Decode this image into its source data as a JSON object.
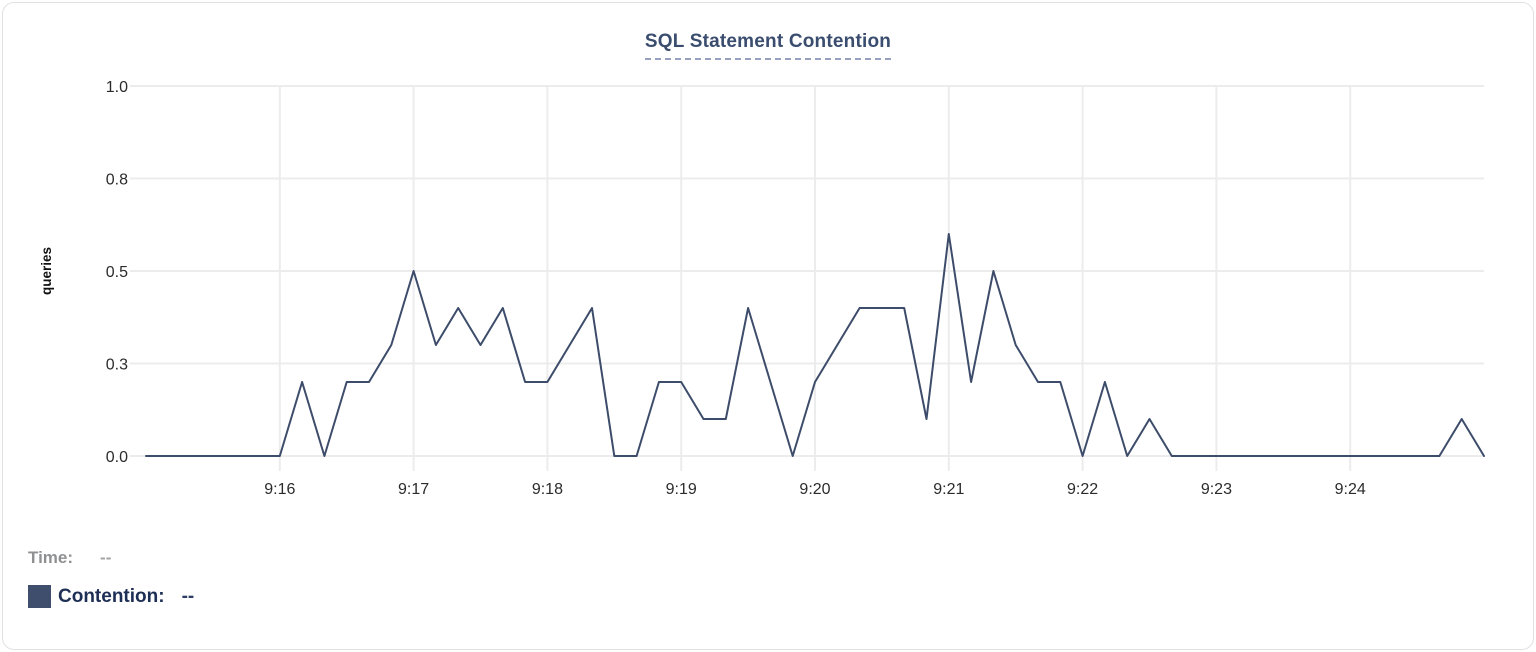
{
  "card": {
    "title": "SQL Statement Contention"
  },
  "chart_data": {
    "type": "line",
    "title": "SQL Statement Contention",
    "xlabel": "",
    "ylabel": "queries",
    "ylim": [
      0,
      1
    ],
    "grid": true,
    "legend_position": "bottom-left",
    "y_ticks": [
      {
        "value": 0,
        "label": "0.0"
      },
      {
        "value": 0.25,
        "label": "0.3"
      },
      {
        "value": 0.5,
        "label": "0.5"
      },
      {
        "value": 0.75,
        "label": "0.8"
      },
      {
        "value": 1,
        "label": "1.0"
      }
    ],
    "x_ticks": [
      "9:16",
      "9:17",
      "9:18",
      "9:19",
      "9:20",
      "9:21",
      "9:22",
      "9:23",
      "9:24"
    ],
    "x_range": [
      "9:15:00",
      "9:25:00"
    ],
    "x_step_seconds": 10,
    "series": [
      {
        "name": "Contention",
        "color": "#3d4c6a",
        "values": [
          0,
          0,
          0,
          0,
          0,
          0,
          0,
          0.2,
          0,
          0.2,
          0.2,
          0.3,
          0.5,
          0.3,
          0.4,
          0.3,
          0.4,
          0.2,
          0.2,
          0.3,
          0.4,
          0,
          0,
          0.2,
          0.2,
          0.1,
          0.1,
          0.4,
          0.2,
          0,
          0.2,
          0.3,
          0.4,
          0.4,
          0.4,
          0.1,
          0.6,
          0.2,
          0.5,
          0.3,
          0.2,
          0.2,
          0,
          0.2,
          0,
          0.1,
          0,
          0,
          0,
          0,
          0,
          0,
          0,
          0,
          0,
          0,
          0,
          0,
          0,
          0.1,
          0
        ]
      }
    ]
  },
  "legend": {
    "time_label": "Time:",
    "time_value": "--",
    "series_label": "Contention:",
    "series_value": "--"
  },
  "colors": {
    "series_line": "#3d4c6a",
    "legend_swatch": "#3f4e6d",
    "grid": "#ececec",
    "tick_text": "#2b2b2b",
    "axis_label_text": "#111111",
    "title_text": "#3a4d6f",
    "title_underline": "#98a0bf",
    "time_text": "#8f9092",
    "contention_text": "#1e2f55",
    "card_border": "#e0e1e4"
  }
}
